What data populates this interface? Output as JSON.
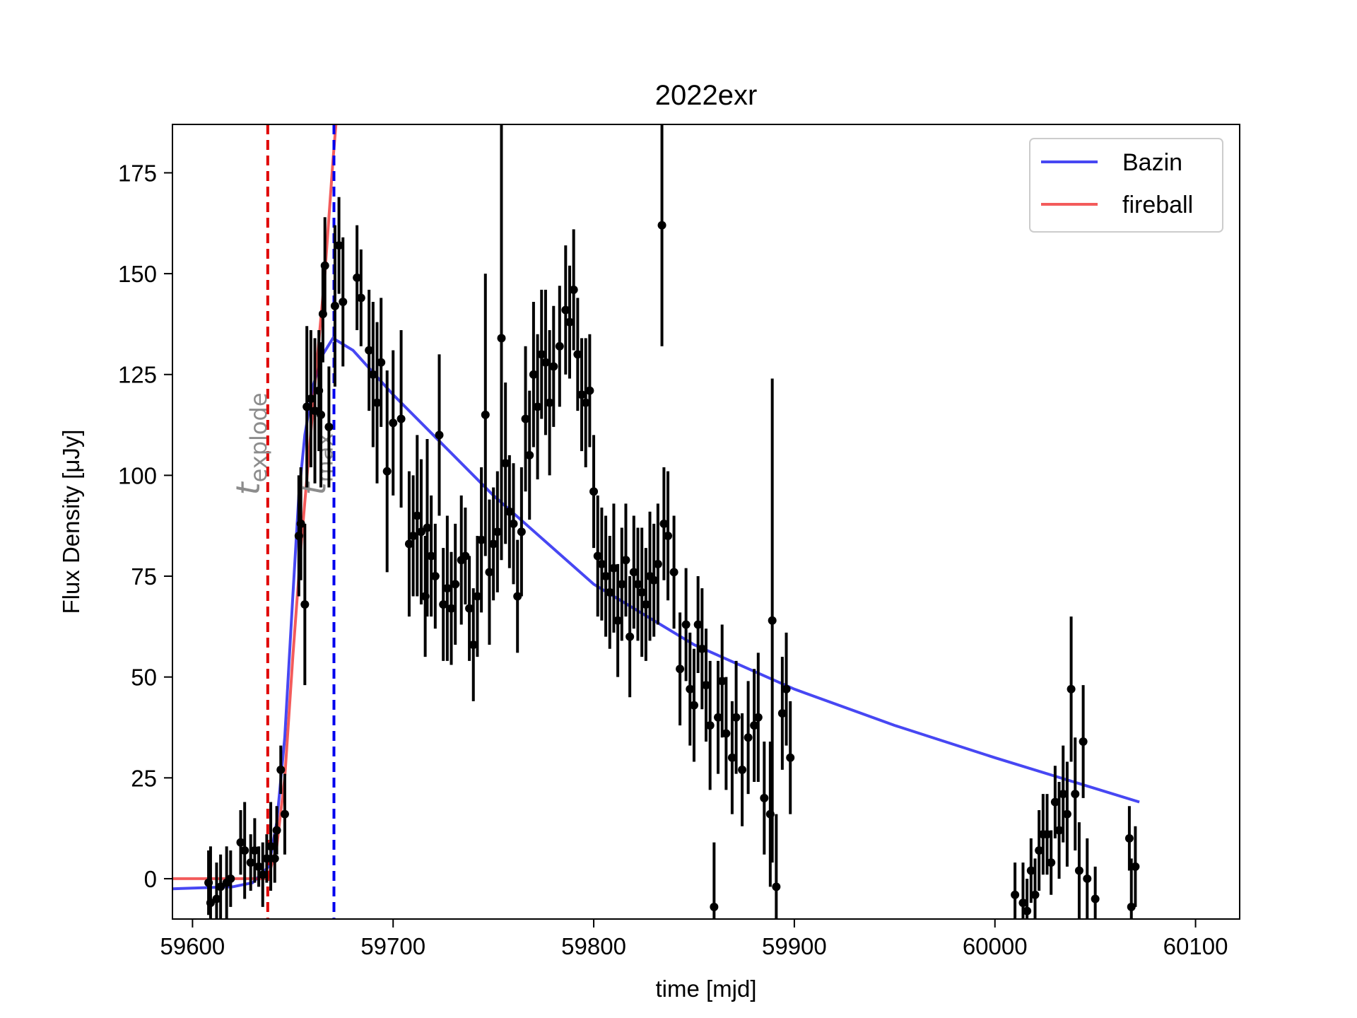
{
  "chart_data": {
    "type": "scatter",
    "title": "2022exr",
    "xlabel": "time [mjd]",
    "ylabel": "Flux Density [μJy]",
    "xlim": [
      59590,
      60122
    ],
    "ylim": [
      -10,
      187
    ],
    "xticks": [
      59600,
      59700,
      59800,
      59900,
      60000,
      60100
    ],
    "yticks": [
      0,
      25,
      50,
      75,
      100,
      125,
      150,
      175
    ],
    "grid": false,
    "legend": {
      "placement": "top-right",
      "entries": [
        {
          "label": "Bazin",
          "color": "#0000ee"
        },
        {
          "label": "fireball",
          "color": "#ee1c1c"
        }
      ]
    },
    "vlines": [
      {
        "name": "t_explode",
        "x": 59637.5,
        "color": "#e00000",
        "label_base": "t",
        "label_sub": "explode"
      },
      {
        "name": "t_max",
        "x": 59670.5,
        "color": "#0000ee",
        "label_base": "t",
        "label_sub": "max"
      }
    ],
    "models": {
      "bazin": {
        "label": "Bazin",
        "color": "#0000ee",
        "x_range": [
          59590,
          60072
        ],
        "points": [
          [
            59590,
            -2.5
          ],
          [
            59620,
            -2
          ],
          [
            59630,
            -1
          ],
          [
            59638,
            3
          ],
          [
            59642,
            14
          ],
          [
            59646,
            35
          ],
          [
            59650,
            70
          ],
          [
            59653,
            95
          ],
          [
            59656,
            110
          ],
          [
            59660,
            122
          ],
          [
            59665,
            130
          ],
          [
            59670,
            134
          ],
          [
            59680,
            131
          ],
          [
            59700,
            120
          ],
          [
            59720,
            110
          ],
          [
            59750,
            95
          ],
          [
            59800,
            73
          ],
          [
            59850,
            58
          ],
          [
            59900,
            47
          ],
          [
            59950,
            38
          ],
          [
            60000,
            30
          ],
          [
            60072,
            19
          ]
        ]
      },
      "fireball": {
        "label": "fireball",
        "color": "#ee1c1c",
        "points": [
          [
            59590,
            0
          ],
          [
            59637.5,
            0
          ],
          [
            59642,
            8
          ],
          [
            59646,
            25
          ],
          [
            59650,
            55
          ],
          [
            59654,
            82
          ],
          [
            59658,
            105
          ],
          [
            59662,
            128
          ],
          [
            59666,
            150
          ],
          [
            59670,
            178
          ],
          [
            59672,
            190
          ]
        ]
      }
    },
    "errorbar_points": [
      {
        "x": 59608,
        "y": -1,
        "err": 8
      },
      {
        "x": 59609,
        "y": -6,
        "err": 14
      },
      {
        "x": 59612,
        "y": -5,
        "err": 9
      },
      {
        "x": 59614,
        "y": -2,
        "err": 8
      },
      {
        "x": 59617,
        "y": -1,
        "err": 9
      },
      {
        "x": 59619,
        "y": 0,
        "err": 7
      },
      {
        "x": 59624,
        "y": 9,
        "err": 8
      },
      {
        "x": 59626,
        "y": 7,
        "err": 12
      },
      {
        "x": 59629,
        "y": 4,
        "err": 7
      },
      {
        "x": 59631,
        "y": 7,
        "err": 8
      },
      {
        "x": 59633,
        "y": 3,
        "err": 5
      },
      {
        "x": 59635,
        "y": 1,
        "err": 8
      },
      {
        "x": 59637,
        "y": 5,
        "err": 6
      },
      {
        "x": 59639,
        "y": 8,
        "err": 11
      },
      {
        "x": 59641,
        "y": 5,
        "err": 6
      },
      {
        "x": 59642,
        "y": 12,
        "err": 6
      },
      {
        "x": 59644,
        "y": 27,
        "err": 6
      },
      {
        "x": 59646,
        "y": 16,
        "err": 10
      },
      {
        "x": 59653,
        "y": 85,
        "err": 15
      },
      {
        "x": 59654,
        "y": 88,
        "err": 14
      },
      {
        "x": 59656,
        "y": 68,
        "err": 20
      },
      {
        "x": 59657,
        "y": 117,
        "err": 20
      },
      {
        "x": 59659,
        "y": 119,
        "err": 17
      },
      {
        "x": 59661,
        "y": 116,
        "err": 18
      },
      {
        "x": 59663,
        "y": 121,
        "err": 15
      },
      {
        "x": 59664,
        "y": 115,
        "err": 18
      },
      {
        "x": 59665,
        "y": 140,
        "err": 12
      },
      {
        "x": 59666,
        "y": 152,
        "err": 12
      },
      {
        "x": 59668,
        "y": 112,
        "err": 15
      },
      {
        "x": 59671,
        "y": 142,
        "err": 20
      },
      {
        "x": 59673,
        "y": 157,
        "err": 12
      },
      {
        "x": 59675,
        "y": 143,
        "err": 16
      },
      {
        "x": 59682,
        "y": 149,
        "err": 13
      },
      {
        "x": 59684,
        "y": 144,
        "err": 12
      },
      {
        "x": 59688,
        "y": 131,
        "err": 15
      },
      {
        "x": 59690,
        "y": 125,
        "err": 18
      },
      {
        "x": 59692,
        "y": 118,
        "err": 20
      },
      {
        "x": 59694,
        "y": 128,
        "err": 16
      },
      {
        "x": 59697,
        "y": 101,
        "err": 25
      },
      {
        "x": 59700,
        "y": 113,
        "err": 18
      },
      {
        "x": 59704,
        "y": 114,
        "err": 22
      },
      {
        "x": 59708,
        "y": 83,
        "err": 18
      },
      {
        "x": 59710,
        "y": 85,
        "err": 15
      },
      {
        "x": 59712,
        "y": 90,
        "err": 20
      },
      {
        "x": 59714,
        "y": 86,
        "err": 18
      },
      {
        "x": 59716,
        "y": 70,
        "err": 15
      },
      {
        "x": 59717,
        "y": 87,
        "err": 22
      },
      {
        "x": 59719,
        "y": 80,
        "err": 15
      },
      {
        "x": 59721,
        "y": 75,
        "err": 13
      },
      {
        "x": 59723,
        "y": 110,
        "err": 20
      },
      {
        "x": 59725,
        "y": 68,
        "err": 14
      },
      {
        "x": 59727,
        "y": 72,
        "err": 18
      },
      {
        "x": 59729,
        "y": 67,
        "err": 14
      },
      {
        "x": 59731,
        "y": 73,
        "err": 15
      },
      {
        "x": 59734,
        "y": 79,
        "err": 16
      },
      {
        "x": 59736,
        "y": 80,
        "err": 12
      },
      {
        "x": 59738,
        "y": 67,
        "err": 13
      },
      {
        "x": 59740,
        "y": 58,
        "err": 14
      },
      {
        "x": 59742,
        "y": 70,
        "err": 15
      },
      {
        "x": 59744,
        "y": 84,
        "err": 18
      },
      {
        "x": 59746,
        "y": 115,
        "err": 35
      },
      {
        "x": 59748,
        "y": 76,
        "err": 18
      },
      {
        "x": 59750,
        "y": 83,
        "err": 14
      },
      {
        "x": 59752,
        "y": 86,
        "err": 15
      },
      {
        "x": 59754,
        "y": 134,
        "err": 55
      },
      {
        "x": 59756,
        "y": 103,
        "err": 20
      },
      {
        "x": 59758,
        "y": 91,
        "err": 14
      },
      {
        "x": 59760,
        "y": 88,
        "err": 15
      },
      {
        "x": 59762,
        "y": 70,
        "err": 14
      },
      {
        "x": 59764,
        "y": 86,
        "err": 16
      },
      {
        "x": 59766,
        "y": 114,
        "err": 18
      },
      {
        "x": 59768,
        "y": 105,
        "err": 16
      },
      {
        "x": 59770,
        "y": 125,
        "err": 18
      },
      {
        "x": 59772,
        "y": 117,
        "err": 18
      },
      {
        "x": 59774,
        "y": 130,
        "err": 16
      },
      {
        "x": 59776,
        "y": 128,
        "err": 18
      },
      {
        "x": 59778,
        "y": 118,
        "err": 18
      },
      {
        "x": 59780,
        "y": 127,
        "err": 15
      },
      {
        "x": 59783,
        "y": 132,
        "err": 15
      },
      {
        "x": 59786,
        "y": 141,
        "err": 16
      },
      {
        "x": 59788,
        "y": 138,
        "err": 14
      },
      {
        "x": 59790,
        "y": 146,
        "err": 15
      },
      {
        "x": 59792,
        "y": 130,
        "err": 14
      },
      {
        "x": 59794,
        "y": 120,
        "err": 14
      },
      {
        "x": 59796,
        "y": 118,
        "err": 16
      },
      {
        "x": 59798,
        "y": 121,
        "err": 14
      },
      {
        "x": 59800,
        "y": 96,
        "err": 14
      },
      {
        "x": 59802,
        "y": 80,
        "err": 15
      },
      {
        "x": 59804,
        "y": 78,
        "err": 14
      },
      {
        "x": 59806,
        "y": 75,
        "err": 15
      },
      {
        "x": 59808,
        "y": 71,
        "err": 14
      },
      {
        "x": 59810,
        "y": 77,
        "err": 16
      },
      {
        "x": 59812,
        "y": 64,
        "err": 14
      },
      {
        "x": 59814,
        "y": 73,
        "err": 14
      },
      {
        "x": 59816,
        "y": 79,
        "err": 14
      },
      {
        "x": 59818,
        "y": 60,
        "err": 15
      },
      {
        "x": 59820,
        "y": 76,
        "err": 14
      },
      {
        "x": 59822,
        "y": 73,
        "err": 14
      },
      {
        "x": 59824,
        "y": 71,
        "err": 16
      },
      {
        "x": 59826,
        "y": 68,
        "err": 14
      },
      {
        "x": 59828,
        "y": 75,
        "err": 16
      },
      {
        "x": 59830,
        "y": 74,
        "err": 14
      },
      {
        "x": 59832,
        "y": 78,
        "err": 15
      },
      {
        "x": 59834,
        "y": 162,
        "err": 30
      },
      {
        "x": 59835,
        "y": 88,
        "err": 14
      },
      {
        "x": 59837,
        "y": 85,
        "err": 16
      },
      {
        "x": 59840,
        "y": 76,
        "err": 14
      },
      {
        "x": 59843,
        "y": 52,
        "err": 14
      },
      {
        "x": 59846,
        "y": 63,
        "err": 14
      },
      {
        "x": 59848,
        "y": 47,
        "err": 14
      },
      {
        "x": 59850,
        "y": 43,
        "err": 14
      },
      {
        "x": 59852,
        "y": 63,
        "err": 12
      },
      {
        "x": 59854,
        "y": 57,
        "err": 15
      },
      {
        "x": 59856,
        "y": 48,
        "err": 14
      },
      {
        "x": 59858,
        "y": 38,
        "err": 16
      },
      {
        "x": 59860,
        "y": -7,
        "err": 16
      },
      {
        "x": 59862,
        "y": 40,
        "err": 14
      },
      {
        "x": 59864,
        "y": 49,
        "err": 14
      },
      {
        "x": 59866,
        "y": 36,
        "err": 14
      },
      {
        "x": 59869,
        "y": 30,
        "err": 14
      },
      {
        "x": 59871,
        "y": 40,
        "err": 14
      },
      {
        "x": 59874,
        "y": 27,
        "err": 14
      },
      {
        "x": 59877,
        "y": 35,
        "err": 14
      },
      {
        "x": 59880,
        "y": 38,
        "err": 14
      },
      {
        "x": 59882,
        "y": 40,
        "err": 16
      },
      {
        "x": 59885,
        "y": 20,
        "err": 14
      },
      {
        "x": 59888,
        "y": 16,
        "err": 18
      },
      {
        "x": 59889,
        "y": 64,
        "err": 60
      },
      {
        "x": 59891,
        "y": -2,
        "err": 18
      },
      {
        "x": 59894,
        "y": 41,
        "err": 14
      },
      {
        "x": 59896,
        "y": 47,
        "err": 14
      },
      {
        "x": 59898,
        "y": 30,
        "err": 14
      },
      {
        "x": 60010,
        "y": -4,
        "err": 8
      },
      {
        "x": 60014,
        "y": -6,
        "err": 10
      },
      {
        "x": 60016,
        "y": -8,
        "err": 8
      },
      {
        "x": 60018,
        "y": 2,
        "err": 8
      },
      {
        "x": 60020,
        "y": -4,
        "err": 9
      },
      {
        "x": 60022,
        "y": 7,
        "err": 10
      },
      {
        "x": 60024,
        "y": 11,
        "err": 10
      },
      {
        "x": 60026,
        "y": 11,
        "err": 10
      },
      {
        "x": 60028,
        "y": 4,
        "err": 8
      },
      {
        "x": 60030,
        "y": 19,
        "err": 9
      },
      {
        "x": 60032,
        "y": 12,
        "err": 12
      },
      {
        "x": 60034,
        "y": 21,
        "err": 12
      },
      {
        "x": 60036,
        "y": 16,
        "err": 13
      },
      {
        "x": 60038,
        "y": 47,
        "err": 18
      },
      {
        "x": 60040,
        "y": 21,
        "err": 14
      },
      {
        "x": 60042,
        "y": 2,
        "err": 12
      },
      {
        "x": 60044,
        "y": 34,
        "err": 14
      },
      {
        "x": 60046,
        "y": 0,
        "err": 10
      },
      {
        "x": 60050,
        "y": -5,
        "err": 8
      },
      {
        "x": 60067,
        "y": 10,
        "err": 8
      },
      {
        "x": 60068,
        "y": -7,
        "err": 12
      },
      {
        "x": 60070,
        "y": 3,
        "err": 10
      }
    ]
  }
}
